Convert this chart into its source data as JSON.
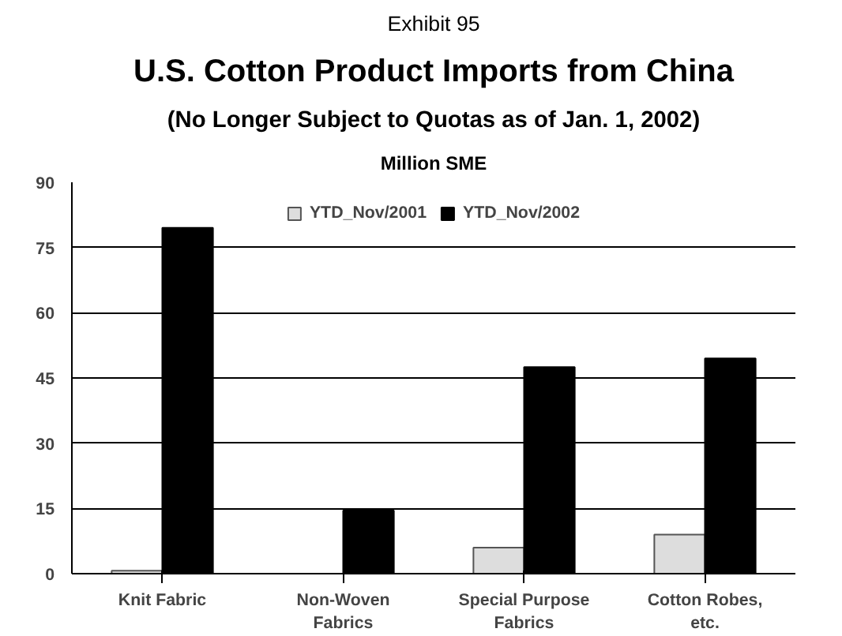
{
  "chart_data": {
    "type": "bar",
    "title": "U.S. Cotton Product Imports from China",
    "subtitle": "(No Longer Subject to Quotas as of Jan. 1, 2002)",
    "annotations": [
      "Exhibit 95"
    ],
    "ylabel": "Million SME",
    "categories": [
      "Knit Fabric",
      "Non-Woven Fabrics",
      "Special Purpose Fabrics",
      "Cotton Robes, etc."
    ],
    "series": [
      {
        "name": "YTD_Nov/2001",
        "color": "#dddddd",
        "values": [
          0.7,
          null,
          6,
          9
        ]
      },
      {
        "name": "YTD_Nov/2002",
        "color": "#000000",
        "values": [
          79.5,
          14.5,
          47.5,
          49.5
        ]
      }
    ],
    "ylim": [
      0,
      90
    ],
    "yticks": [
      0,
      15,
      30,
      45,
      60,
      75,
      90
    ],
    "grid": "y",
    "legend": "top"
  }
}
